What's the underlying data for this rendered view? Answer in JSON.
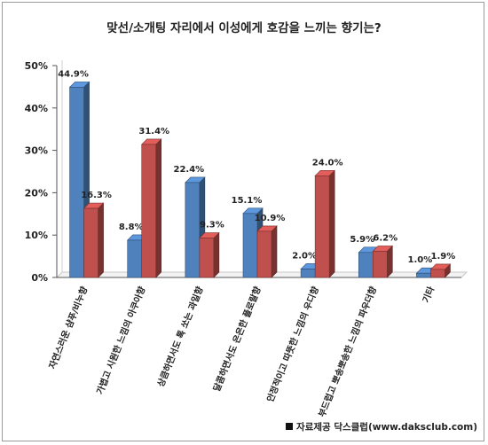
{
  "chart_data": {
    "type": "bar",
    "title": "맞선/소개팅 자리에서 이성에게 호감을 느끼는 향기는?",
    "categories": [
      "자연스러운 샴푸/비누향",
      "가볍고 시원한 느낌의 아쿠아향",
      "상큼하면서도 톡 쏘는 과일향",
      "달콤하면서도 은은한 플로랄향",
      "안정적이고 따뜻한 느낌의 우디향",
      "부드럽고 뽀송뽀송한 느낌의 파우더향",
      "기타"
    ],
    "series": [
      {
        "values": [
          44.9,
          8.8,
          22.4,
          15.1,
          2.0,
          5.9,
          1.0
        ],
        "color": "#4f81bd"
      },
      {
        "values": [
          16.3,
          31.4,
          9.3,
          10.9,
          24.0,
          6.2,
          1.9
        ],
        "color": "#c0504d"
      }
    ],
    "value_labels": [
      [
        "44.9%",
        "8.8%",
        "22.4%",
        "15.1%",
        "2.0%",
        "5.9%",
        "1.0%"
      ],
      [
        "16.3%",
        "31.4%",
        "9.3%",
        "10.9%",
        "24.0%",
        "6.2%",
        "1.9%"
      ]
    ],
    "ylim": [
      0,
      50
    ],
    "yticks": [
      "0%",
      "10%",
      "20%",
      "30%",
      "40%",
      "50%"
    ],
    "grid": false,
    "legend": "none",
    "style": "3d-bar"
  },
  "source": "자료제공 닥스클럽(www.daksclub.com)"
}
